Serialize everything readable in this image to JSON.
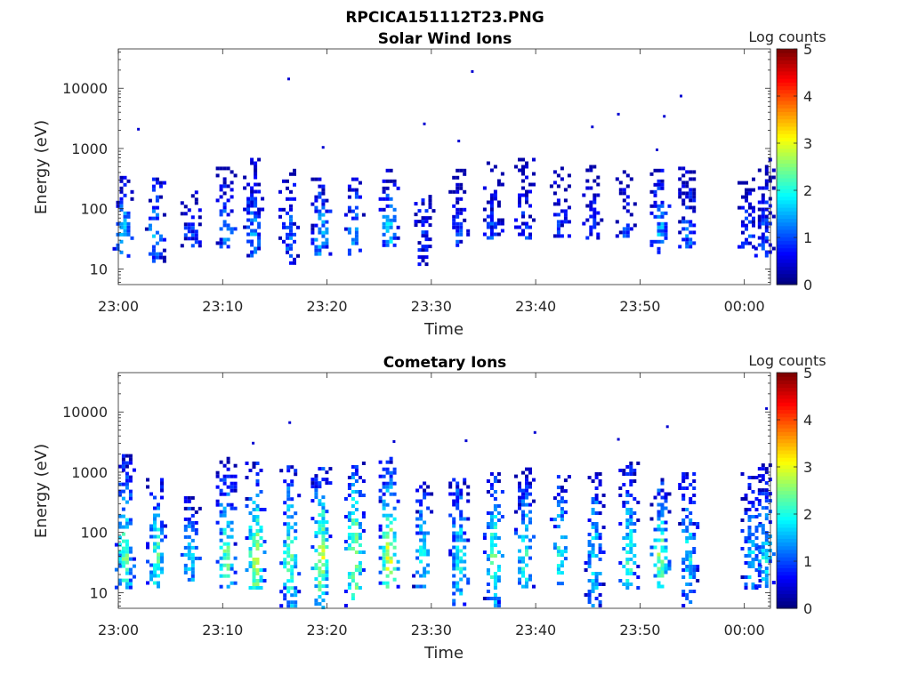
{
  "figure": {
    "title": "RPCICA151112T23.PNG"
  },
  "chart_data": [
    {
      "type": "heatmap",
      "title": "Solar Wind Ions",
      "xlabel": "Time",
      "ylabel": "Energy (eV)",
      "x_ticks": [
        "23:00",
        "23:10",
        "23:20",
        "23:30",
        "23:40",
        "23:50",
        "00:00"
      ],
      "y_ticks": [
        "10",
        "100",
        "1000",
        "10000"
      ],
      "y_scale": "log",
      "ylim": [
        5.5,
        45000
      ],
      "xlim_minutes_from_2300": [
        0,
        62.5
      ],
      "colorbar": {
        "label": "Log counts",
        "ticks": [
          "0",
          "1",
          "2",
          "3",
          "4",
          "5"
        ],
        "range": [
          0,
          5
        ],
        "colormap": "jet"
      },
      "bursts": [
        {
          "t": 0.3,
          "e_min": 17,
          "e_max": 350,
          "peak": 1.8
        },
        {
          "t": 3.4,
          "e_min": 12,
          "e_max": 330,
          "peak": 1.6
        },
        {
          "t": 6.8,
          "e_min": 24,
          "e_max": 200,
          "peak": 1.0
        },
        {
          "t": 10.2,
          "e_min": 17,
          "e_max": 500,
          "peak": 1.3
        },
        {
          "t": 12.8,
          "e_min": 17,
          "e_max": 700,
          "peak": 1.5
        },
        {
          "t": 16.2,
          "e_min": 12,
          "e_max": 460,
          "peak": 1.2
        },
        {
          "t": 19.3,
          "e_min": 17,
          "e_max": 330,
          "peak": 1.8
        },
        {
          "t": 22.5,
          "e_min": 17,
          "e_max": 330,
          "peak": 1.5
        },
        {
          "t": 25.8,
          "e_min": 24,
          "e_max": 460,
          "peak": 2.0
        },
        {
          "t": 29.2,
          "e_min": 12,
          "e_max": 170,
          "peak": 0.9
        },
        {
          "t": 32.5,
          "e_min": 24,
          "e_max": 460,
          "peak": 0.9
        },
        {
          "t": 35.8,
          "e_min": 35,
          "e_max": 700,
          "peak": 1.0
        },
        {
          "t": 38.8,
          "e_min": 35,
          "e_max": 700,
          "peak": 0.9
        },
        {
          "t": 42.2,
          "e_min": 35,
          "e_max": 500,
          "peak": 0.8
        },
        {
          "t": 45.3,
          "e_min": 35,
          "e_max": 700,
          "peak": 0.8
        },
        {
          "t": 48.5,
          "e_min": 35,
          "e_max": 500,
          "peak": 0.9
        },
        {
          "t": 51.8,
          "e_min": 17,
          "e_max": 460,
          "peak": 1.6
        },
        {
          "t": 54.5,
          "e_min": 24,
          "e_max": 500,
          "peak": 1.2
        },
        {
          "t": 60.2,
          "e_min": 24,
          "e_max": 330,
          "peak": 0.9
        },
        {
          "t": 61.8,
          "e_min": 17,
          "e_max": 700,
          "peak": 0.9
        }
      ],
      "isolated_points": [
        {
          "t": 1.8,
          "energy": 2200,
          "value": 0.4
        },
        {
          "t": 16.2,
          "energy": 15000,
          "value": 0.4
        },
        {
          "t": 19.5,
          "energy": 1100,
          "value": 0.4
        },
        {
          "t": 29.2,
          "energy": 2700,
          "value": 0.4
        },
        {
          "t": 32.5,
          "energy": 1400,
          "value": 0.4
        },
        {
          "t": 33.8,
          "energy": 20000,
          "value": 0.4
        },
        {
          "t": 45.3,
          "energy": 2400,
          "value": 0.4
        },
        {
          "t": 47.8,
          "energy": 3900,
          "value": 0.4
        },
        {
          "t": 52.2,
          "energy": 3600,
          "value": 0.4
        },
        {
          "t": 53.8,
          "energy": 7800,
          "value": 0.4
        },
        {
          "t": 51.5,
          "energy": 1000,
          "value": 0.4
        }
      ]
    },
    {
      "type": "heatmap",
      "title": "Cometary Ions",
      "xlabel": "Time",
      "ylabel": "Energy (eV)",
      "x_ticks": [
        "23:00",
        "23:10",
        "23:20",
        "23:30",
        "23:40",
        "23:50",
        "00:00"
      ],
      "y_ticks": [
        "10",
        "100",
        "1000",
        "10000"
      ],
      "y_scale": "log",
      "ylim": [
        5.5,
        45000
      ],
      "xlim_minutes_from_2300": [
        0,
        62.5
      ],
      "colorbar": {
        "label": "Log counts",
        "ticks": [
          "0",
          "1",
          "2",
          "3",
          "4",
          "5"
        ],
        "range": [
          0,
          5
        ],
        "colormap": "jet"
      },
      "bursts": [
        {
          "t": 0.5,
          "e_min": 12,
          "e_max": 2000,
          "peak": 2.6
        },
        {
          "t": 3.5,
          "e_min": 12,
          "e_max": 800,
          "peak": 2.6
        },
        {
          "t": 6.8,
          "e_min": 17,
          "e_max": 400,
          "peak": 2.1
        },
        {
          "t": 10.2,
          "e_min": 12,
          "e_max": 1800,
          "peak": 2.6
        },
        {
          "t": 13.0,
          "e_min": 12,
          "e_max": 1500,
          "peak": 3.2
        },
        {
          "t": 16.3,
          "e_min": 6,
          "e_max": 1300,
          "peak": 2.6
        },
        {
          "t": 19.3,
          "e_min": 6,
          "e_max": 1400,
          "peak": 3.1
        },
        {
          "t": 22.5,
          "e_min": 6,
          "e_max": 1500,
          "peak": 3.2
        },
        {
          "t": 25.8,
          "e_min": 12,
          "e_max": 1800,
          "peak": 3.4
        },
        {
          "t": 29.0,
          "e_min": 12,
          "e_max": 700,
          "peak": 2.1
        },
        {
          "t": 32.5,
          "e_min": 6,
          "e_max": 800,
          "peak": 2.2
        },
        {
          "t": 35.8,
          "e_min": 6,
          "e_max": 1000,
          "peak": 2.6
        },
        {
          "t": 38.8,
          "e_min": 12,
          "e_max": 1200,
          "peak": 2.3
        },
        {
          "t": 42.2,
          "e_min": 12,
          "e_max": 900,
          "peak": 2.3
        },
        {
          "t": 45.5,
          "e_min": 6,
          "e_max": 1000,
          "peak": 2.0
        },
        {
          "t": 48.8,
          "e_min": 12,
          "e_max": 1500,
          "peak": 2.3
        },
        {
          "t": 51.8,
          "e_min": 12,
          "e_max": 800,
          "peak": 2.8
        },
        {
          "t": 54.5,
          "e_min": 6,
          "e_max": 1000,
          "peak": 2.0
        },
        {
          "t": 60.5,
          "e_min": 12,
          "e_max": 1000,
          "peak": 1.8
        },
        {
          "t": 61.8,
          "e_min": 12,
          "e_max": 1400,
          "peak": 2.0
        }
      ],
      "isolated_points": [
        {
          "t": 16.3,
          "energy": 7000,
          "value": 0.4
        },
        {
          "t": 12.8,
          "energy": 3200,
          "value": 0.4
        },
        {
          "t": 26.3,
          "energy": 3400,
          "value": 0.4
        },
        {
          "t": 33.2,
          "energy": 3500,
          "value": 0.4
        },
        {
          "t": 39.8,
          "energy": 4800,
          "value": 0.4
        },
        {
          "t": 47.8,
          "energy": 3700,
          "value": 0.4
        },
        {
          "t": 52.5,
          "energy": 6000,
          "value": 0.4
        },
        {
          "t": 62.0,
          "energy": 12000,
          "value": 0.4
        }
      ]
    }
  ]
}
